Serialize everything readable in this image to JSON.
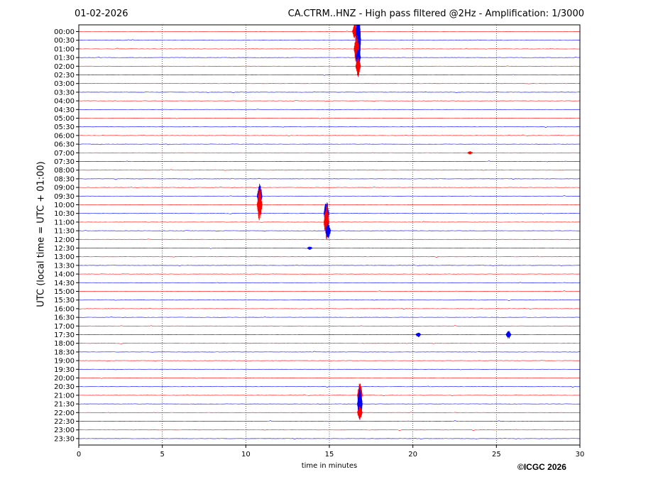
{
  "header": {
    "date": "01-02-2026",
    "title": "CA.CTRM..HNZ - High pass filtered @2Hz - Amplification: 1/3000"
  },
  "footer": {
    "copyright": "©ICGC 2026"
  },
  "chart_data": {
    "type": "line",
    "title": "CA.CTRM..HNZ - High pass filtered @2Hz - Amplification: 1/3000",
    "xlabel": "time in minutes",
    "ylabel": "UTC (local time = UTC + 01:00)",
    "xlim": [
      0,
      30
    ],
    "xticks": [
      0,
      5,
      10,
      15,
      20,
      25,
      30
    ],
    "grid": "vertical dotted lines at x ticks",
    "rows": [
      "00:00",
      "00:30",
      "01:00",
      "01:30",
      "02:00",
      "02:30",
      "03:00",
      "03:30",
      "04:00",
      "04:30",
      "05:00",
      "05:30",
      "06:00",
      "06:30",
      "07:00",
      "07:30",
      "08:00",
      "08:30",
      "09:00",
      "09:30",
      "10:00",
      "10:30",
      "11:00",
      "11:30",
      "12:00",
      "12:30",
      "13:00",
      "13:30",
      "14:00",
      "14:30",
      "15:00",
      "15:30",
      "16:00",
      "16:30",
      "17:00",
      "17:30",
      "18:00",
      "18:30",
      "19:00",
      "19:30",
      "20:00",
      "20:30",
      "21:00",
      "21:30",
      "22:00",
      "22:30",
      "23:00",
      "23:30"
    ],
    "row_colors": [
      "#ff0000",
      "#0000ff"
    ],
    "events": [
      {
        "row": "00:00",
        "minute": 16.5,
        "amplitude": 0.9
      },
      {
        "row": "00:30",
        "minute": 16.7,
        "amplitude": 5.0
      },
      {
        "row": "01:00",
        "minute": 16.6,
        "amplitude": 1.8
      },
      {
        "row": "01:30",
        "minute": 16.7,
        "amplitude": 1.0
      },
      {
        "row": "02:00",
        "minute": 16.7,
        "amplitude": 1.2
      },
      {
        "row": "09:30",
        "minute": 10.8,
        "amplitude": 1.5
      },
      {
        "row": "10:00",
        "minute": 10.8,
        "amplitude": 2.0
      },
      {
        "row": "10:30",
        "minute": 14.8,
        "amplitude": 1.6
      },
      {
        "row": "11:00",
        "minute": 14.8,
        "amplitude": 2.2
      },
      {
        "row": "11:30",
        "minute": 14.9,
        "amplitude": 1.0
      },
      {
        "row": "21:00",
        "minute": 16.8,
        "amplitude": 1.5
      },
      {
        "row": "21:30",
        "minute": 16.8,
        "amplitude": 2.0
      },
      {
        "row": "22:00",
        "minute": 16.8,
        "amplitude": 0.8
      },
      {
        "row": "17:30",
        "minute": 20.3,
        "amplitude": 0.3
      },
      {
        "row": "17:30",
        "minute": 25.7,
        "amplitude": 0.5
      },
      {
        "row": "12:30",
        "minute": 13.8,
        "amplitude": 0.2
      },
      {
        "row": "07:00",
        "minute": 23.4,
        "amplitude": 0.2
      }
    ]
  }
}
